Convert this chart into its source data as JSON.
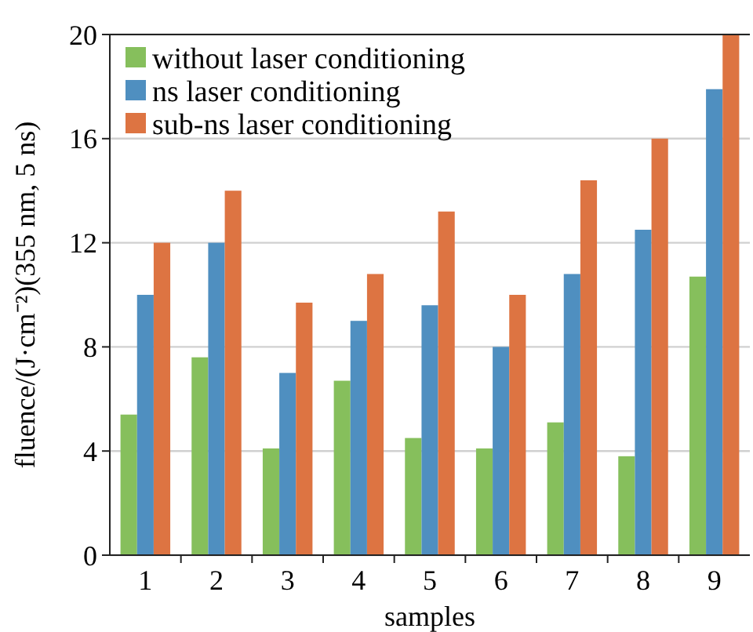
{
  "chart_data": {
    "type": "bar",
    "xlabel": "samples",
    "ylabel": "fluence/(J·cm⁻²)(355 nm, 5 ns)",
    "categories": [
      "1",
      "2",
      "3",
      "4",
      "5",
      "6",
      "7",
      "8",
      "9"
    ],
    "series": [
      {
        "name": "without laser conditioning",
        "color": "#86bf5c",
        "values": [
          5.4,
          7.6,
          4.1,
          6.7,
          4.5,
          4.1,
          5.1,
          3.8,
          10.7
        ]
      },
      {
        "name": "ns laser conditioning",
        "color": "#4f8fc0",
        "values": [
          10,
          12,
          7,
          9,
          9.6,
          8,
          10.8,
          12.5,
          17.9
        ]
      },
      {
        "name": "sub-ns laser conditioning",
        "color": "#dd7442",
        "values": [
          12,
          14,
          9.7,
          10.8,
          13.2,
          10,
          14.4,
          16,
          20
        ]
      }
    ],
    "ylim": [
      0,
      20
    ],
    "yticks": [
      0,
      4,
      8,
      12,
      16,
      20
    ],
    "grid": "y",
    "legend": "top left"
  }
}
